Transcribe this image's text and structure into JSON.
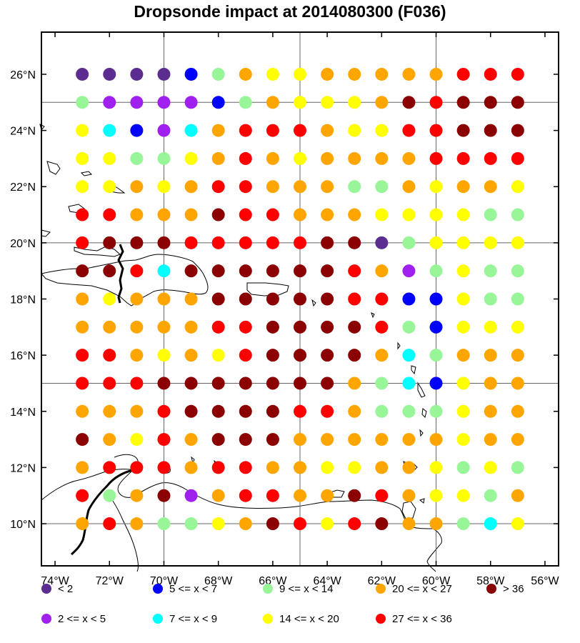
{
  "title": "Dropsonde impact at 2014080300 (F036)",
  "map": {
    "lon_range": [
      -74.5,
      -55.5
    ],
    "lat_range": [
      8.5,
      27.5
    ],
    "lon_ticks": [
      {
        "value": -74,
        "label": "74°W"
      },
      {
        "value": -72,
        "label": "72°W"
      },
      {
        "value": -70,
        "label": "70°W"
      },
      {
        "value": -68,
        "label": "68°W"
      },
      {
        "value": -66,
        "label": "66°W"
      },
      {
        "value": -64,
        "label": "64°W"
      },
      {
        "value": -62,
        "label": "62°W"
      },
      {
        "value": -60,
        "label": "60°W"
      },
      {
        "value": -58,
        "label": "58°W"
      },
      {
        "value": -56,
        "label": "56°W"
      }
    ],
    "lat_ticks": [
      {
        "value": 26,
        "label": "26°N"
      },
      {
        "value": 24,
        "label": "24°N"
      },
      {
        "value": 22,
        "label": "22°N"
      },
      {
        "value": 20,
        "label": "20°N"
      },
      {
        "value": 18,
        "label": "18°N"
      },
      {
        "value": 16,
        "label": "16°N"
      },
      {
        "value": 14,
        "label": "14°N"
      },
      {
        "value": 12,
        "label": "12°N"
      },
      {
        "value": 10,
        "label": "10°N"
      }
    ],
    "grid_lons": [
      -70,
      -65,
      -60
    ],
    "grid_lats": [
      25,
      20,
      15,
      10
    ]
  },
  "colors": {
    "c0": "#5c2d91",
    "c1": "#a020f0",
    "c2": "#0000ff",
    "c3": "#00ffff",
    "c4": "#98f598",
    "c5": "#ffff00",
    "c6": "#ffa500",
    "c7": "#ff0000",
    "c8": "#8b0000"
  },
  "legend": [
    {
      "cls": "c0",
      "label": "<  2"
    },
    {
      "cls": "c2",
      "label": "5 <= x <  7"
    },
    {
      "cls": "c4",
      "label": "9 <= x < 14"
    },
    {
      "cls": "c6",
      "label": "20 <= x < 27"
    },
    {
      "cls": "c8",
      "label": "> 36"
    },
    {
      "cls": "c1",
      "label": "2 <= x <  5"
    },
    {
      "cls": "c3",
      "label": "7 <= x <  9"
    },
    {
      "cls": "c5",
      "label": "14 <= x < 20"
    },
    {
      "cls": "c7",
      "label": "27 <= x < 36"
    }
  ],
  "chart_data": {
    "type": "scatter",
    "title": "Dropsonde impact at 2014080300 (F036)",
    "x_axis": "longitude",
    "y_axis": "latitude",
    "lons": [
      -73,
      -72,
      -71,
      -70,
      -69,
      -68,
      -67,
      -66,
      -65,
      -64,
      -63,
      -62,
      -61,
      -60,
      -59,
      -58,
      -57
    ],
    "lats": [
      26,
      25,
      24,
      23,
      22,
      21,
      20,
      19,
      18,
      17,
      16,
      15,
      14,
      13,
      12,
      11,
      10
    ],
    "class_bins": {
      "c0": "< 2",
      "c1": "2 <= x < 5",
      "c2": "5 <= x < 7",
      "c3": "7 <= x < 9",
      "c4": "9 <= x < 14",
      "c5": "14 <= x < 20",
      "c6": "20 <= x < 27",
      "c7": "27 <= x < 36",
      "c8": "> 36"
    },
    "rows": [
      [
        "c0",
        "c0",
        "c0",
        "c0",
        "c2",
        "c4",
        "c6",
        "c5",
        "c5",
        "c6",
        "c6",
        "c6",
        "c6",
        "c6",
        "c7",
        "c7",
        "c7"
      ],
      [
        "c4",
        "c1",
        "c1",
        "c1",
        "c1",
        "c2",
        "c4",
        "c6",
        "c5",
        "c5",
        "c5",
        "c6",
        "c8",
        "c7",
        "c8",
        "c8",
        "c8"
      ],
      [
        "c5",
        "c3",
        "c2",
        "c1",
        "c3",
        "c6",
        "c7",
        "c7",
        "c7",
        "c6",
        "c5",
        "c5",
        "c7",
        "c7",
        "c8",
        "c8",
        "c8"
      ],
      [
        "c5",
        "c5",
        "c4",
        "c4",
        "c5",
        "c6",
        "c7",
        "c6",
        "c5",
        "c6",
        "c6",
        "c6",
        "c6",
        "c7",
        "c7",
        "c7",
        "c7"
      ],
      [
        "c5",
        "c5",
        "c6",
        "c5",
        "c6",
        "c7",
        "c7",
        "c6",
        "c6",
        "c6",
        "c4",
        "c4",
        "c6",
        "c5",
        "c6",
        "c6",
        "c5"
      ],
      [
        "c7",
        "c7",
        "c6",
        "c6",
        "c6",
        "c8",
        "c7",
        "c7",
        "c6",
        "c6",
        "c6",
        "c5",
        "c5",
        "c5",
        "c5",
        "c4",
        "c4"
      ],
      [
        "c7",
        "c8",
        "c8",
        "c8",
        "c7",
        "c7",
        "c7",
        "c7",
        "c7",
        "c8",
        "c8",
        "c0",
        "c4",
        "c5",
        "c5",
        "c5",
        "c5"
      ],
      [
        "c8",
        "c8",
        "c7",
        "c3",
        "c8",
        "c8",
        "c8",
        "c8",
        "c8",
        "c8",
        "c7",
        "c6",
        "c1",
        "c4",
        "c5",
        "c4",
        "c4"
      ],
      [
        "c6",
        "c5",
        "c6",
        "c6",
        "c6",
        "c8",
        "c8",
        "c8",
        "c8",
        "c8",
        "c7",
        "c7",
        "c2",
        "c2",
        "c5",
        "c4",
        "c4"
      ],
      [
        "c6",
        "c6",
        "c6",
        "c6",
        "c6",
        "c7",
        "c7",
        "c8",
        "c8",
        "c8",
        "c8",
        "c7",
        "c4",
        "c2",
        "c5",
        "c5",
        "c5"
      ],
      [
        "c7",
        "c7",
        "c6",
        "c5",
        "c6",
        "c5",
        "c7",
        "c8",
        "c8",
        "c8",
        "c8",
        "c6",
        "c3",
        "c4",
        "c6",
        "c6",
        "c6"
      ],
      [
        "c7",
        "c7",
        "c7",
        "c8",
        "c8",
        "c8",
        "c8",
        "c8",
        "c8",
        "c8",
        "c6",
        "c4",
        "c3",
        "c2",
        "c5",
        "c6",
        "c6"
      ],
      [
        "c6",
        "c6",
        "c6",
        "c7",
        "c8",
        "c8",
        "c8",
        "c8",
        "c7",
        "c7",
        "c6",
        "c4",
        "c4",
        "c4",
        "c5",
        "c6",
        "c6"
      ],
      [
        "c8",
        "c6",
        "c5",
        "c7",
        "c6",
        "c8",
        "c8",
        "c8",
        "c6",
        "c6",
        "c6",
        "c6",
        "c6",
        "c6",
        "c5",
        "c6",
        "c6"
      ],
      [
        "c6",
        "c7",
        "c7",
        "c7",
        "c6",
        "c7",
        "c7",
        "c6",
        "c6",
        "c5",
        "c5",
        "c6",
        "c6",
        "c5",
        "c4",
        "c5",
        "c4"
      ],
      [
        "c7",
        "c4",
        "c6",
        "c8",
        "c1",
        "c6",
        "c7",
        "c7",
        "c6",
        "c6",
        "c8",
        "c7",
        "c6",
        "c5",
        "c5",
        "c4",
        "c6"
      ],
      [
        "c6",
        "c7",
        "c6",
        "c4",
        "c4",
        "c5",
        "c6",
        "c8",
        "c7",
        "c5",
        "c7",
        "c8",
        "c6",
        "c6",
        "c4",
        "c3",
        "c5"
      ]
    ]
  }
}
